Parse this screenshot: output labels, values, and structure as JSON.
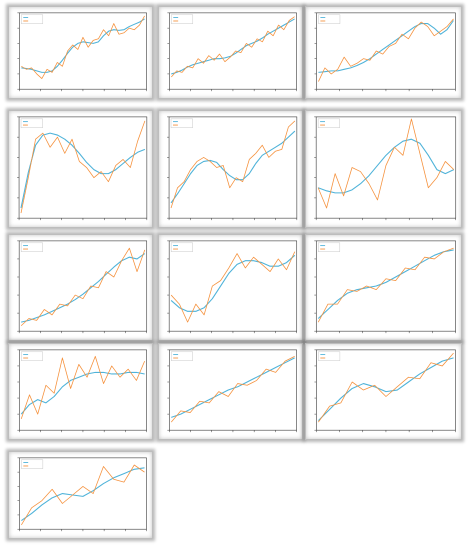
{
  "colors": {
    "model": "#4fb3d9",
    "data": "#f5923e",
    "axis": "#333333"
  },
  "chart_data": [
    {
      "type": "line",
      "row": 0,
      "col": 0,
      "legend": [
        "",
        ""
      ],
      "xlabel": "",
      "ylabel": "",
      "ylim": [
        0,
        1
      ],
      "series": [
        {
          "name": "",
          "values": [
            0.28,
            0.27,
            0.26,
            0.24,
            0.22,
            0.22,
            0.24,
            0.3,
            0.38,
            0.47,
            0.55,
            0.6,
            0.62,
            0.61,
            0.6,
            0.62,
            0.7,
            0.76,
            0.78,
            0.77,
            0.78,
            0.82,
            0.85,
            0.88,
            0.92
          ]
        },
        {
          "name": "",
          "values": [
            0.3,
            0.26,
            0.28,
            0.2,
            0.14,
            0.26,
            0.22,
            0.35,
            0.3,
            0.5,
            0.58,
            0.52,
            0.68,
            0.55,
            0.64,
            0.66,
            0.78,
            0.7,
            0.86,
            0.72,
            0.74,
            0.8,
            0.78,
            0.84,
            0.96
          ]
        }
      ]
    },
    {
      "type": "line",
      "row": 0,
      "col": 1,
      "legend": [
        "",
        ""
      ],
      "xlabel": "",
      "ylabel": "",
      "ylim": [
        0,
        1
      ],
      "series": [
        {
          "name": "",
          "values": [
            0.2,
            0.22,
            0.25,
            0.29,
            0.32,
            0.34,
            0.36,
            0.38,
            0.4,
            0.4,
            0.41,
            0.43,
            0.47,
            0.52,
            0.57,
            0.6,
            0.63,
            0.67,
            0.72,
            0.76,
            0.8,
            0.84,
            0.88,
            0.92
          ]
        },
        {
          "name": "",
          "values": [
            0.16,
            0.24,
            0.22,
            0.3,
            0.28,
            0.4,
            0.34,
            0.44,
            0.38,
            0.46,
            0.36,
            0.42,
            0.5,
            0.48,
            0.6,
            0.55,
            0.66,
            0.62,
            0.76,
            0.7,
            0.84,
            0.78,
            0.9,
            0.95
          ]
        }
      ]
    },
    {
      "type": "line",
      "row": 0,
      "col": 2,
      "legend": [
        "",
        ""
      ],
      "xlabel": "",
      "ylabel": "",
      "ylim": [
        0,
        1
      ],
      "series": [
        {
          "name": "",
          "values": [
            0.22,
            0.23,
            0.24,
            0.24,
            0.26,
            0.28,
            0.31,
            0.35,
            0.4,
            0.46,
            0.52,
            0.58,
            0.64,
            0.7,
            0.76,
            0.82,
            0.86,
            0.86,
            0.8,
            0.72,
            0.78,
            0.9
          ]
        },
        {
          "name": "",
          "values": [
            0.1,
            0.28,
            0.2,
            0.26,
            0.42,
            0.3,
            0.34,
            0.4,
            0.38,
            0.5,
            0.46,
            0.56,
            0.6,
            0.72,
            0.66,
            0.8,
            0.88,
            0.82,
            0.7,
            0.76,
            0.82,
            0.92
          ]
        }
      ]
    },
    {
      "type": "line",
      "row": 1,
      "col": 0,
      "legend": [
        "",
        ""
      ],
      "xlabel": "",
      "ylabel": "",
      "ylim": [
        0,
        1
      ],
      "series": [
        {
          "name": "",
          "values": [
            0.1,
            0.45,
            0.72,
            0.82,
            0.84,
            0.82,
            0.78,
            0.72,
            0.64,
            0.55,
            0.48,
            0.44,
            0.44,
            0.48,
            0.54,
            0.6,
            0.65,
            0.68
          ]
        },
        {
          "name": "",
          "values": [
            0.05,
            0.4,
            0.78,
            0.84,
            0.7,
            0.8,
            0.64,
            0.78,
            0.56,
            0.5,
            0.4,
            0.46,
            0.36,
            0.52,
            0.58,
            0.5,
            0.76,
            0.96
          ]
        }
      ]
    },
    {
      "type": "line",
      "row": 1,
      "col": 1,
      "legend": [
        "",
        ""
      ],
      "xlabel": "",
      "ylabel": "",
      "ylim": [
        0,
        1
      ],
      "series": [
        {
          "name": "",
          "values": [
            0.15,
            0.24,
            0.34,
            0.44,
            0.52,
            0.56,
            0.57,
            0.55,
            0.48,
            0.42,
            0.38,
            0.38,
            0.44,
            0.54,
            0.62,
            0.66,
            0.7,
            0.74,
            0.8,
            0.86
          ]
        },
        {
          "name": "",
          "values": [
            0.1,
            0.3,
            0.36,
            0.48,
            0.56,
            0.6,
            0.56,
            0.5,
            0.52,
            0.3,
            0.4,
            0.36,
            0.58,
            0.64,
            0.72,
            0.6,
            0.66,
            0.68,
            0.9,
            0.96
          ]
        }
      ]
    },
    {
      "type": "line",
      "row": 1,
      "col": 2,
      "legend": [
        "",
        ""
      ],
      "xlabel": "",
      "ylabel": "",
      "ylim": [
        0,
        1
      ],
      "series": [
        {
          "name": "",
          "values": [
            0.3,
            0.27,
            0.25,
            0.25,
            0.28,
            0.34,
            0.42,
            0.52,
            0.62,
            0.7,
            0.76,
            0.78,
            0.74,
            0.62,
            0.48,
            0.44,
            0.48
          ]
        },
        {
          "name": "",
          "values": [
            0.3,
            0.1,
            0.44,
            0.22,
            0.5,
            0.46,
            0.34,
            0.18,
            0.52,
            0.7,
            0.62,
            0.98,
            0.64,
            0.3,
            0.4,
            0.56,
            0.48
          ]
        }
      ]
    },
    {
      "type": "line",
      "row": 2,
      "col": 0,
      "legend": [
        "",
        ""
      ],
      "xlabel": "",
      "ylabel": "",
      "ylim": [
        0,
        1
      ],
      "series": [
        {
          "name": "",
          "values": [
            0.1,
            0.12,
            0.15,
            0.18,
            0.22,
            0.26,
            0.3,
            0.35,
            0.41,
            0.48,
            0.55,
            0.63,
            0.71,
            0.78,
            0.82,
            0.8,
            0.86
          ]
        },
        {
          "name": "",
          "values": [
            0.06,
            0.14,
            0.12,
            0.24,
            0.18,
            0.3,
            0.28,
            0.4,
            0.36,
            0.5,
            0.48,
            0.66,
            0.6,
            0.78,
            0.92,
            0.66,
            0.9
          ]
        }
      ]
    },
    {
      "type": "line",
      "row": 2,
      "col": 1,
      "legend": [
        "",
        ""
      ],
      "xlabel": "",
      "ylabel": "",
      "ylim": [
        0,
        1
      ],
      "series": [
        {
          "name": "",
          "values": [
            0.34,
            0.26,
            0.22,
            0.22,
            0.26,
            0.36,
            0.5,
            0.64,
            0.74,
            0.78,
            0.78,
            0.76,
            0.72,
            0.72,
            0.76,
            0.84
          ]
        },
        {
          "name": "",
          "values": [
            0.4,
            0.3,
            0.1,
            0.3,
            0.18,
            0.5,
            0.56,
            0.7,
            0.86,
            0.7,
            0.82,
            0.74,
            0.66,
            0.8,
            0.68,
            0.88
          ]
        }
      ]
    },
    {
      "type": "line",
      "row": 2,
      "col": 2,
      "legend": [
        "",
        ""
      ],
      "xlabel": "",
      "ylabel": "",
      "ylim": [
        0,
        1
      ],
      "series": [
        {
          "name": "",
          "values": [
            0.14,
            0.24,
            0.34,
            0.42,
            0.46,
            0.48,
            0.5,
            0.54,
            0.6,
            0.66,
            0.72,
            0.78,
            0.84,
            0.88,
            0.9
          ]
        },
        {
          "name": "",
          "values": [
            0.1,
            0.3,
            0.3,
            0.46,
            0.44,
            0.5,
            0.46,
            0.58,
            0.56,
            0.7,
            0.68,
            0.82,
            0.8,
            0.88,
            0.92
          ]
        }
      ]
    },
    {
      "type": "line",
      "row": 3,
      "col": 0,
      "legend": [
        "",
        ""
      ],
      "xlabel": "",
      "ylabel": "",
      "ylim": [
        0,
        1
      ],
      "series": [
        {
          "name": "",
          "values": [
            0.2,
            0.32,
            0.38,
            0.34,
            0.42,
            0.54,
            0.62,
            0.66,
            0.7,
            0.72,
            0.72,
            0.7,
            0.7,
            0.72,
            0.72,
            0.7
          ]
        },
        {
          "name": "",
          "values": [
            0.14,
            0.44,
            0.2,
            0.56,
            0.46,
            0.9,
            0.52,
            0.82,
            0.66,
            0.92,
            0.58,
            0.8,
            0.66,
            0.76,
            0.62,
            0.86
          ]
        }
      ]
    },
    {
      "type": "line",
      "row": 3,
      "col": 1,
      "legend": [
        "",
        ""
      ],
      "xlabel": "",
      "ylabel": "",
      "ylim": [
        0,
        1
      ],
      "series": [
        {
          "name": "",
          "values": [
            0.16,
            0.2,
            0.26,
            0.32,
            0.38,
            0.44,
            0.5,
            0.54,
            0.6,
            0.66,
            0.72,
            0.78,
            0.84,
            0.9
          ]
        },
        {
          "name": "",
          "values": [
            0.1,
            0.24,
            0.22,
            0.36,
            0.34,
            0.48,
            0.42,
            0.58,
            0.56,
            0.62,
            0.76,
            0.72,
            0.86,
            0.92
          ]
        }
      ]
    },
    {
      "type": "line",
      "row": 3,
      "col": 2,
      "legend": [
        "",
        ""
      ],
      "xlabel": "",
      "ylabel": "",
      "ylim": [
        0,
        1
      ],
      "series": [
        {
          "name": "",
          "values": [
            0.12,
            0.26,
            0.4,
            0.52,
            0.58,
            0.54,
            0.48,
            0.5,
            0.6,
            0.7,
            0.78,
            0.86,
            0.9
          ]
        },
        {
          "name": "",
          "values": [
            0.1,
            0.3,
            0.34,
            0.6,
            0.5,
            0.56,
            0.42,
            0.54,
            0.66,
            0.64,
            0.84,
            0.8,
            0.96
          ]
        }
      ]
    },
    {
      "type": "line",
      "row": 4,
      "col": 0,
      "legend": [
        "",
        ""
      ],
      "xlabel": "",
      "ylabel": "",
      "ylim": [
        0,
        1
      ],
      "series": [
        {
          "name": "",
          "values": [
            0.12,
            0.22,
            0.34,
            0.44,
            0.5,
            0.48,
            0.46,
            0.54,
            0.64,
            0.72,
            0.78,
            0.84,
            0.86
          ]
        },
        {
          "name": "",
          "values": [
            0.06,
            0.3,
            0.4,
            0.56,
            0.36,
            0.48,
            0.6,
            0.5,
            0.88,
            0.7,
            0.66,
            0.9,
            0.8
          ]
        }
      ]
    }
  ]
}
